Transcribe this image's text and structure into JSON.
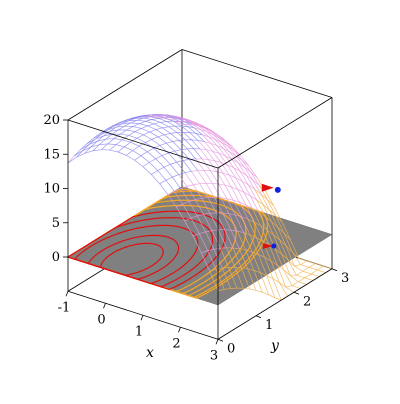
{
  "chart_data": {
    "type": "surface3d",
    "title": "",
    "xlabel": "x",
    "ylabel": "y",
    "zlabel": "",
    "xlim": [
      -1,
      3
    ],
    "ylim": [
      0,
      3
    ],
    "zlim": [
      -5,
      20
    ],
    "x_ticks": [
      "-1",
      "0",
      "1",
      "2",
      "3"
    ],
    "y_ticks": [
      "0",
      "1",
      "2",
      "3"
    ],
    "z_ticks": [
      "0",
      "5",
      "10",
      "15",
      "20"
    ],
    "plane_z": 0,
    "contour_levels": [
      1,
      2,
      4,
      6,
      8,
      10,
      12,
      14,
      16,
      18
    ],
    "colors": {
      "plane": "#808080",
      "contour_low": "#f5a623",
      "contour_high": "#e01010",
      "mesh_top": "#8a8af0",
      "mesh_mid": "#e89ae0",
      "mesh_bottom": "#f5b050",
      "gradient_marker": "#e01010",
      "point_marker": "#1020e0",
      "box": "#000000"
    }
  }
}
